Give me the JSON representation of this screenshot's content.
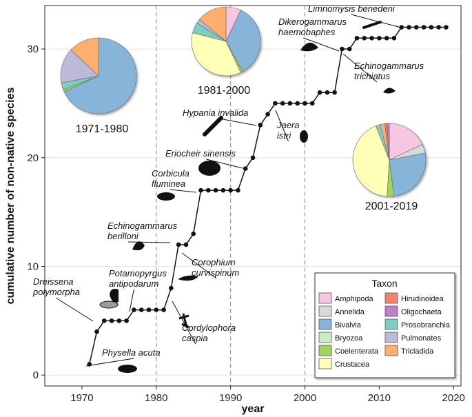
{
  "chart_data": {
    "type": "line",
    "xlabel": "year",
    "ylabel": "cumulative number of non-native species",
    "xlim": [
      1965,
      2021
    ],
    "ylim": [
      -1,
      34
    ],
    "xticks": [
      1970,
      1980,
      1990,
      2000,
      2010,
      2020
    ],
    "yticks": [
      0,
      10,
      20,
      30
    ],
    "period_dividers": [
      1980,
      1990,
      2000
    ],
    "x": [
      1971,
      1972,
      1973,
      1974,
      1975,
      1976,
      1977,
      1978,
      1979,
      1980,
      1981,
      1982,
      1983,
      1984,
      1985,
      1986,
      1987,
      1988,
      1989,
      1990,
      1991,
      1992,
      1993,
      1994,
      1995,
      1996,
      1997,
      1998,
      1999,
      2000,
      2001,
      2002,
      2003,
      2004,
      2005,
      2006,
      2007,
      2008,
      2009,
      2010,
      2011,
      2012,
      2013,
      2014,
      2015,
      2016,
      2017,
      2018,
      2019
    ],
    "y": [
      1,
      4,
      5,
      5,
      5,
      5,
      6,
      6,
      6,
      6,
      6,
      8,
      12,
      12,
      13,
      17,
      17,
      17,
      17,
      17,
      17,
      19,
      20,
      23,
      24,
      25,
      25,
      25,
      25,
      25,
      25,
      26,
      26,
      26,
      30,
      30,
      31,
      31,
      31,
      31,
      31,
      31,
      32,
      32,
      32,
      32,
      32,
      32,
      32
    ],
    "annotations": [
      {
        "label": "Dreissena polymorpha",
        "lines": [
          "Dreissena",
          "polymorpha"
        ],
        "year": 1973,
        "value": 5
      },
      {
        "label": "Physella acuta",
        "lines": [
          "Physella acuta"
        ],
        "year": 1971,
        "value": 1
      },
      {
        "label": "Potamopyrgus antipodarum",
        "lines": [
          "Potamopyrgus",
          "antipodarum"
        ],
        "year": 1977,
        "value": 6
      },
      {
        "label": "Echinogammarus berilloni",
        "lines": [
          "Echinogammarus",
          "berilloni"
        ],
        "year": 1983,
        "value": 12
      },
      {
        "label": "Corophium curvispinum",
        "lines": [
          "Corophium",
          "curvispinum"
        ],
        "year": 1984,
        "value": 12
      },
      {
        "label": "Cordylophora caspia",
        "lines": [
          "Cordylophora",
          "caspia"
        ],
        "year": 1982,
        "value": 8
      },
      {
        "label": "Corbicula fluminea",
        "lines": [
          "Corbicula",
          "fluminea"
        ],
        "year": 1986,
        "value": 17
      },
      {
        "label": "Eriocheir sinensis",
        "lines": [
          "Eriocheir sinensis"
        ],
        "year": 1992,
        "value": 19
      },
      {
        "label": "Hypania invalida",
        "lines": [
          "Hypania invalida"
        ],
        "year": 1994,
        "value": 23
      },
      {
        "label": "Jaera istri",
        "lines": [
          "Jaera",
          "istri"
        ],
        "year": 1997,
        "value": 25
      },
      {
        "label": "Dikerogammarus haemobaphes",
        "lines": [
          "Dikerogammarus",
          "haemobaphes"
        ],
        "year": 2005,
        "value": 30
      },
      {
        "label": "Echinogammarus trichiatus",
        "lines": [
          "Echinogammarus",
          "trichiatus"
        ],
        "year": 2006,
        "value": 30
      },
      {
        "label": "Limnomysis benedeni",
        "lines": [
          "Limnomysis benedeni"
        ],
        "year": 2013,
        "value": 32
      }
    ],
    "legend": {
      "title": "Taxon",
      "entries": [
        {
          "name": "Amphipoda",
          "color": "#f7c6e0"
        },
        {
          "name": "Annelida",
          "color": "#d9d9d9"
        },
        {
          "name": "Bivalvia",
          "color": "#86b5d9"
        },
        {
          "name": "Bryozoa",
          "color": "#c9ecc0"
        },
        {
          "name": "Coelenterata",
          "color": "#9fd65a"
        },
        {
          "name": "Crustacea",
          "color": "#ffffb8"
        },
        {
          "name": "Hirudinoidea",
          "color": "#f7826b"
        },
        {
          "name": "Oligochaeta",
          "color": "#c27fc9"
        },
        {
          "name": "Prosobranchia",
          "color": "#7ccfc0"
        },
        {
          "name": "Pulmonates",
          "color": "#bcb9db"
        },
        {
          "name": "Tricladida",
          "color": "#fdb06e"
        }
      ]
    },
    "pies": [
      {
        "label": "1971-1980",
        "slices": [
          {
            "taxon": "Bivalvia",
            "value": 68
          },
          {
            "taxon": "Coelenterata",
            "value": 1
          },
          {
            "taxon": "Prosobranchia",
            "value": 3
          },
          {
            "taxon": "Pulmonates",
            "value": 15
          },
          {
            "taxon": "Tricladida",
            "value": 13
          }
        ]
      },
      {
        "label": "1981-2000",
        "slices": [
          {
            "taxon": "Amphipoda",
            "value": 7
          },
          {
            "taxon": "Bivalvia",
            "value": 35
          },
          {
            "taxon": "Coelenterata",
            "value": 1
          },
          {
            "taxon": "Crustacea",
            "value": 36
          },
          {
            "taxon": "Prosobranchia",
            "value": 5
          },
          {
            "taxon": "Pulmonates",
            "value": 2
          },
          {
            "taxon": "Tricladida",
            "value": 14
          }
        ]
      },
      {
        "label": "2001-2019",
        "slices": [
          {
            "taxon": "Amphipoda",
            "value": 18
          },
          {
            "taxon": "Annelida",
            "value": 4
          },
          {
            "taxon": "Bivalvia",
            "value": 26
          },
          {
            "taxon": "Coelenterata",
            "value": 3
          },
          {
            "taxon": "Crustacea",
            "value": 43
          },
          {
            "taxon": "Prosobranchia",
            "value": 2
          },
          {
            "taxon": "Tricladida",
            "value": 2
          },
          {
            "taxon": "Hirudinoidea",
            "value": 1
          },
          {
            "taxon": "Oligochaeta",
            "value": 1
          }
        ]
      }
    ]
  }
}
